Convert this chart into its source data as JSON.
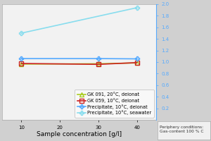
{
  "title": "",
  "xlabel": "Sample concentration [g/l]",
  "background_color": "#d0d0d0",
  "plot_bg_color": "#f2f2f2",
  "series": [
    {
      "label": "GK 091, 20°C, deionat",
      "x": [
        10,
        30,
        40
      ],
      "y": [
        0.965,
        0.97,
        0.985
      ],
      "color": "#aacc22",
      "marker": "^",
      "marker_hollow": true,
      "linewidth": 1.2
    },
    {
      "label": "GK 059, 10°C, deionat",
      "x": [
        10,
        30,
        40
      ],
      "y": [
        0.975,
        0.96,
        0.99
      ],
      "color": "#cc2222",
      "marker": "s",
      "marker_hollow": true,
      "linewidth": 1.2
    },
    {
      "label": "Precipitate, 10°C, deionat",
      "x": [
        10,
        30,
        40
      ],
      "y": [
        1.06,
        1.06,
        1.055
      ],
      "color": "#55aaff",
      "marker": "P",
      "marker_hollow": true,
      "linewidth": 1.2
    },
    {
      "label": "Precipitate, 10°C, seawater",
      "x": [
        10,
        40
      ],
      "y": [
        1.5,
        1.94
      ],
      "color": "#88ddee",
      "marker": "P",
      "marker_hollow": true,
      "linewidth": 1.2
    }
  ],
  "xlim": [
    5,
    45
  ],
  "xticks": [
    10,
    20,
    30,
    40
  ],
  "ylim": [
    0.0,
    2.0
  ],
  "yticks_right": [
    0.2,
    0.4,
    0.6,
    0.8,
    1.0,
    1.2,
    1.4,
    1.6,
    1.8,
    2.0
  ],
  "right_axis_color": "#55aaff",
  "annotation": "Periphery conditions:\nGas-content 100 % C",
  "grid_color": "#ffffff",
  "tick_fontsize": 5.0,
  "label_fontsize": 6.5,
  "legend_fontsize": 4.8
}
